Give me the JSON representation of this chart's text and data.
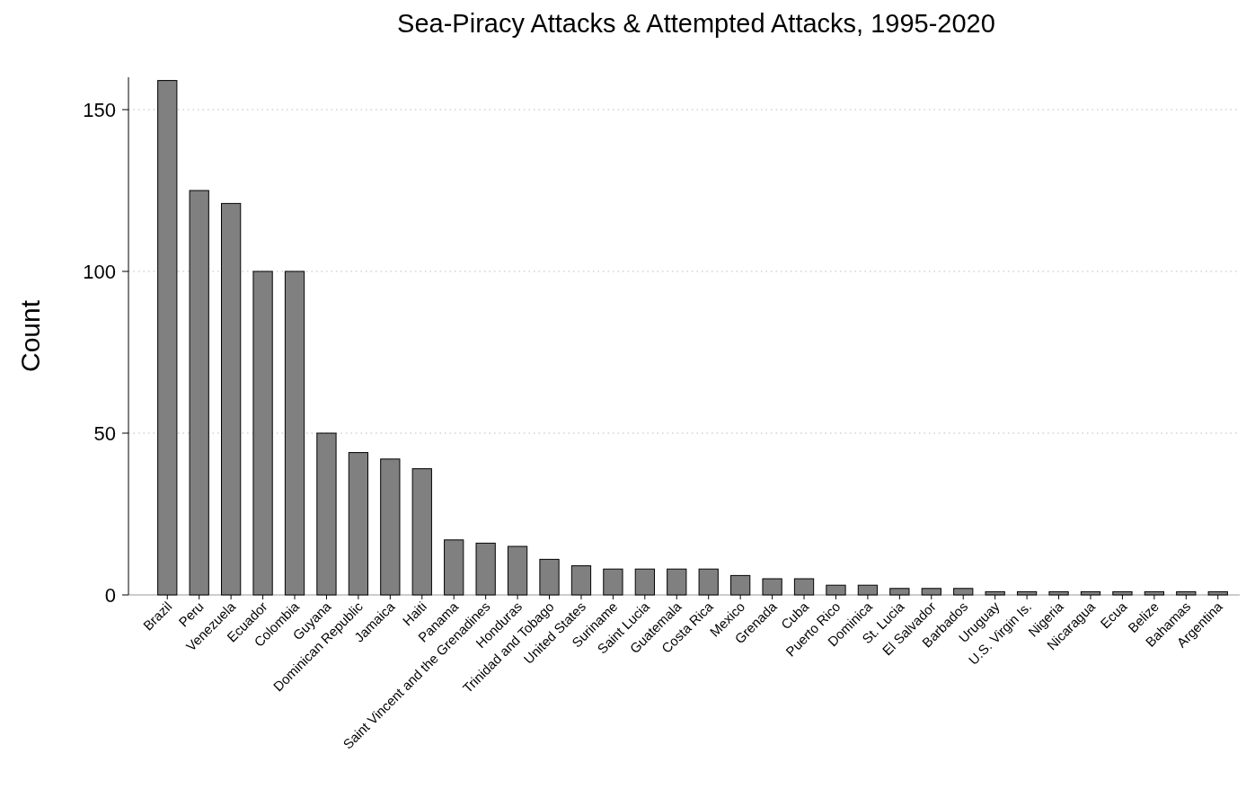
{
  "chart_data": {
    "type": "bar",
    "title": "Sea-Piracy Attacks & Attempted Attacks, 1995-2020",
    "ylabel": "Count",
    "categories": [
      "Brazil",
      "Peru",
      "Venezuela",
      "Ecuador",
      "Colombia",
      "Guyana",
      "Dominican Republic",
      "Jamaica",
      "Haiti",
      "Panama",
      "Saint Vincent and the Grenadines",
      "Honduras",
      "Trinidad and Tobago",
      "United States",
      "Suriname",
      "Saint Lucia",
      "Guatemala",
      "Costa Rica",
      "Mexico",
      "Grenada",
      "Cuba",
      "Puerto Rico",
      "Dominica",
      "St. Lucia",
      "El Salvador",
      "Barbados",
      "Uruguay",
      "U.S. Virgin Is.",
      "Nigeria",
      "Nicaragua",
      "Ecua",
      "Belize",
      "Bahamas",
      "Argentina"
    ],
    "values": [
      159,
      125,
      121,
      100,
      100,
      50,
      44,
      42,
      39,
      17,
      16,
      15,
      11,
      9,
      8,
      8,
      8,
      8,
      6,
      5,
      5,
      3,
      3,
      2,
      2,
      2,
      1,
      1,
      1,
      1,
      1,
      1,
      1,
      1
    ],
    "color": "#808080",
    "ylim": [
      0,
      160
    ],
    "yticks": [
      0,
      50,
      100,
      150
    ],
    "grid": "y"
  }
}
